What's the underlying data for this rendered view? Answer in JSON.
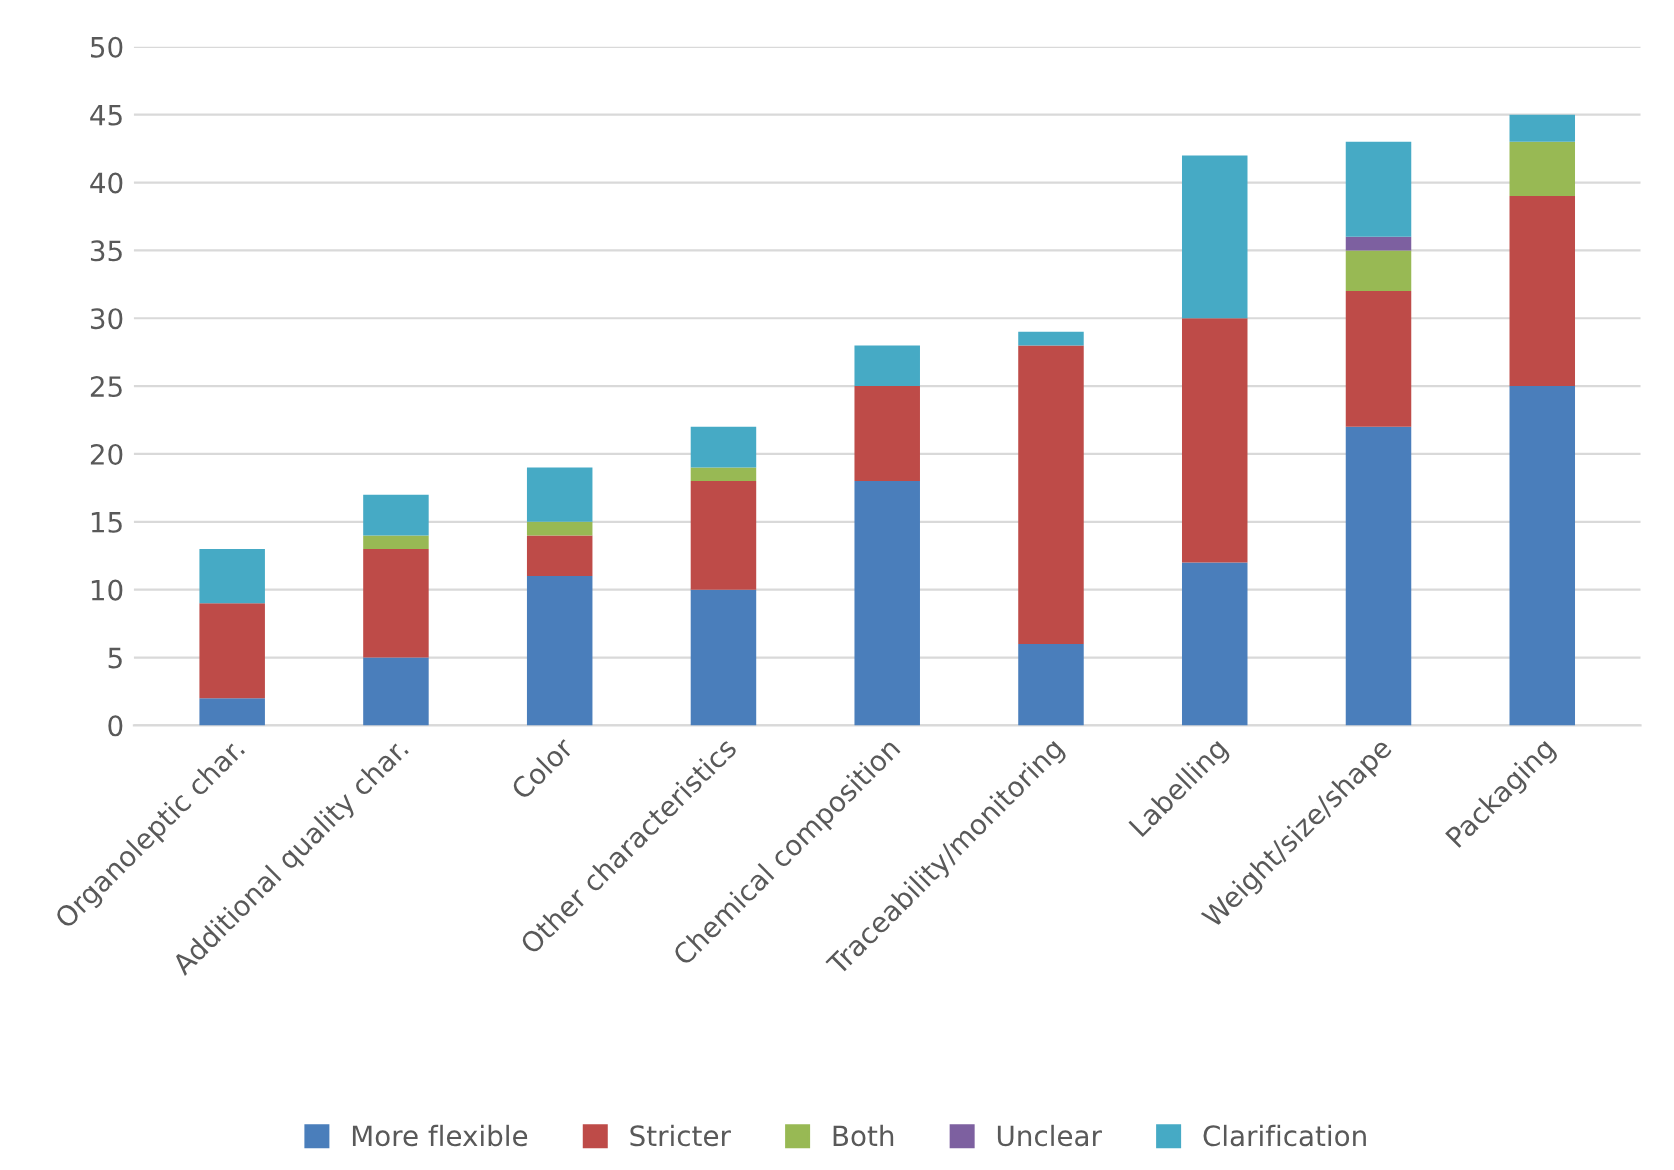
{
  "chart_data": {
    "type": "bar",
    "stacked": true,
    "categories": [
      "Organoleptic char.",
      "Additional quality char.",
      "Color",
      "Other characteristics",
      "Chemical composition",
      "Traceability/monitoring",
      "Labelling",
      "Weight/size/shape",
      "Packaging"
    ],
    "series": [
      {
        "name": "More flexible",
        "color": "#4a7ebb",
        "values": [
          2,
          5,
          11,
          10,
          18,
          6,
          12,
          22,
          25
        ]
      },
      {
        "name": "Stricter",
        "color": "#be4b48",
        "values": [
          7,
          8,
          3,
          8,
          7,
          22,
          18,
          10,
          14
        ]
      },
      {
        "name": "Both",
        "color": "#98b954",
        "values": [
          0,
          1,
          1,
          1,
          0,
          0,
          0,
          3,
          4
        ]
      },
      {
        "name": "Unclear",
        "color": "#7d60a0",
        "values": [
          0,
          0,
          0,
          0,
          0,
          0,
          0,
          1,
          0
        ]
      },
      {
        "name": "Clarification",
        "color": "#46aac5",
        "values": [
          4,
          3,
          4,
          3,
          3,
          1,
          12,
          7,
          2
        ]
      }
    ],
    "ylim": [
      0,
      50
    ],
    "yticks": [
      0,
      5,
      10,
      15,
      20,
      25,
      30,
      35,
      40,
      45,
      50
    ],
    "grid": "y",
    "legend": "bottom"
  }
}
